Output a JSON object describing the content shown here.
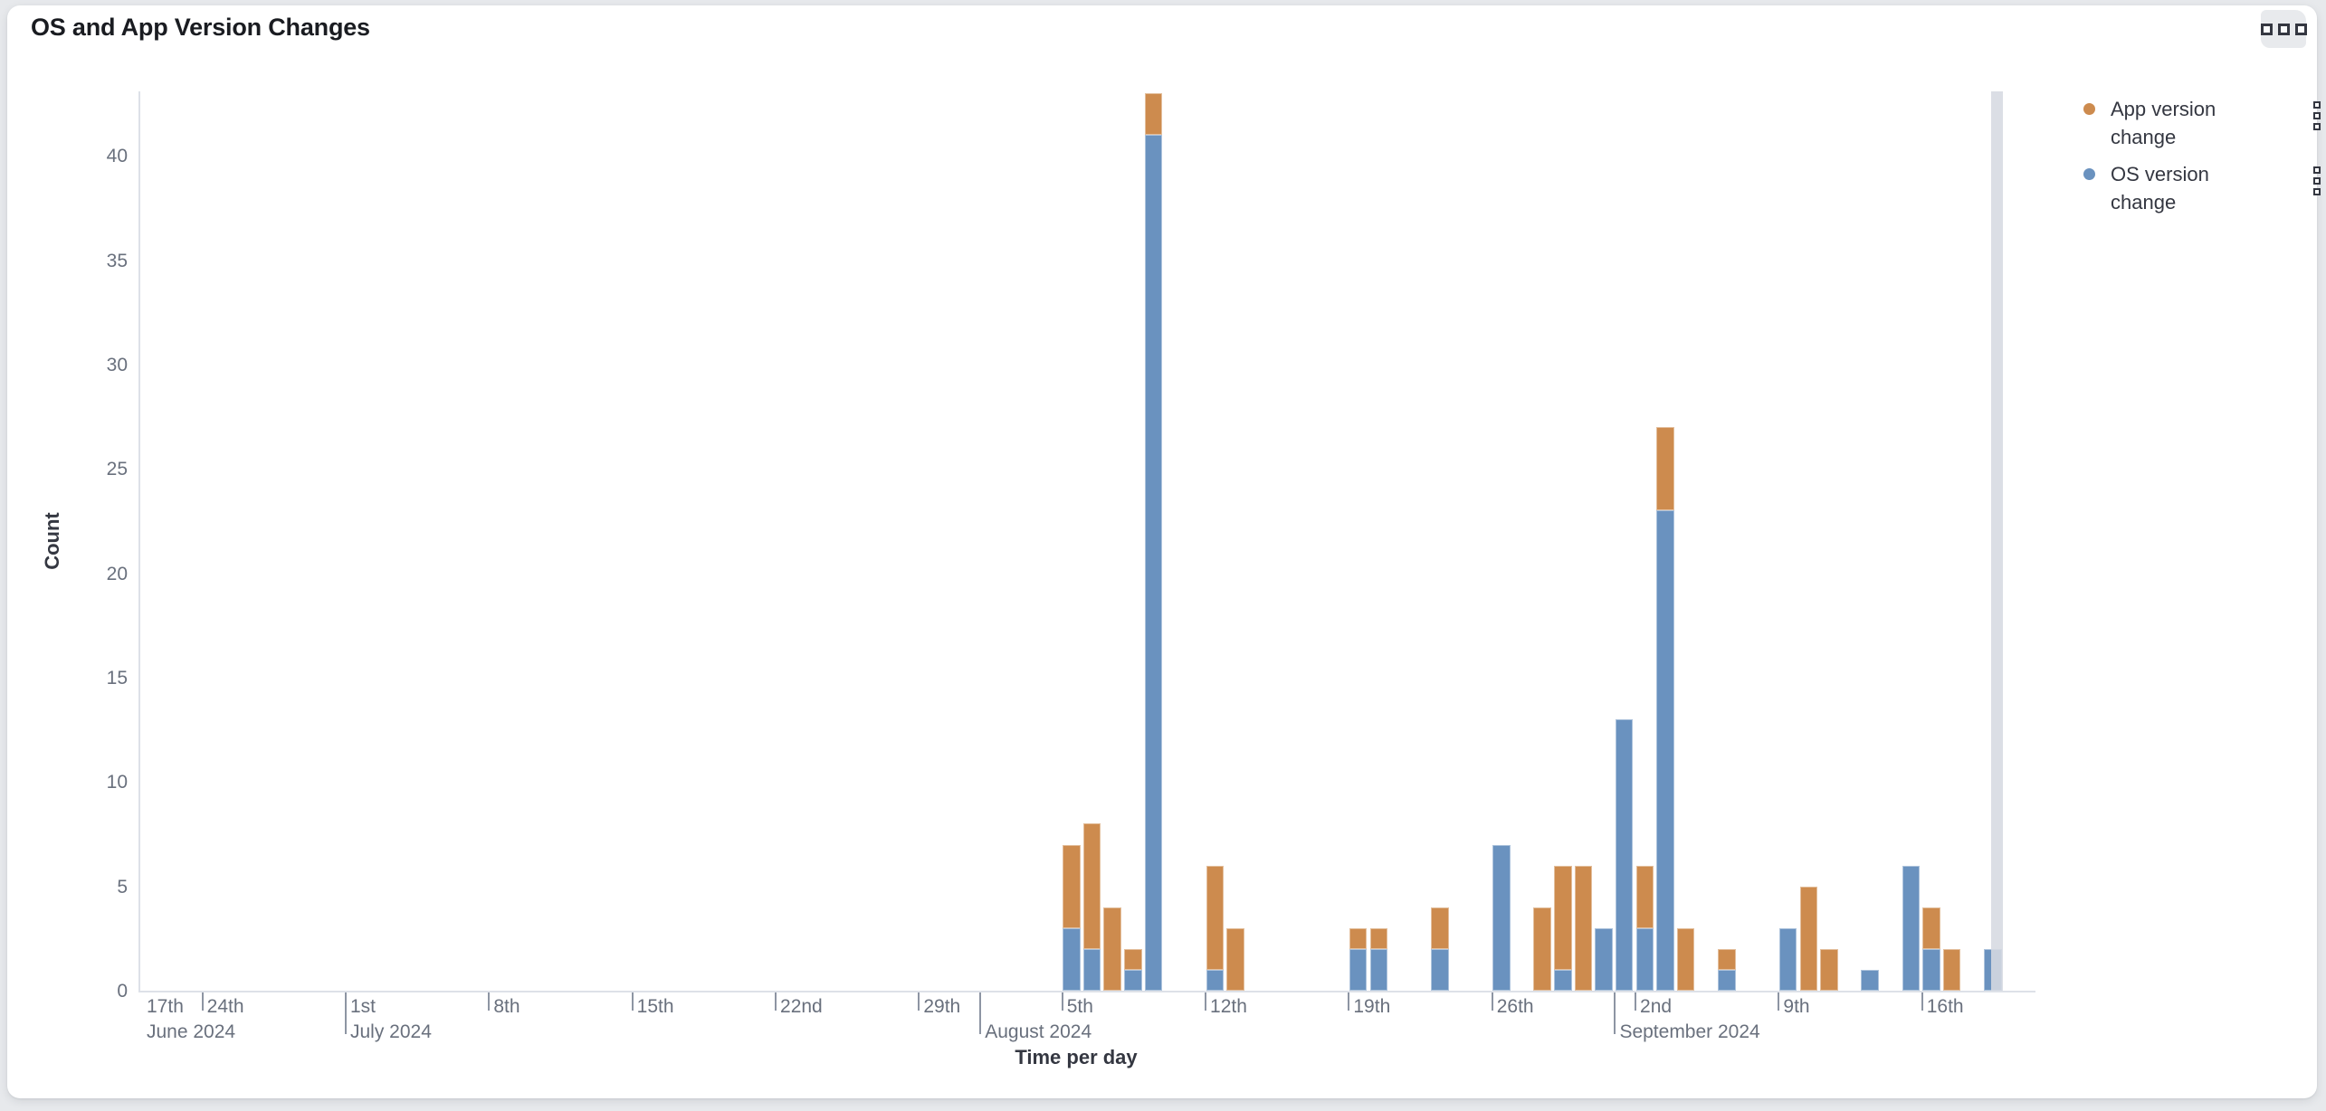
{
  "panel": {
    "title": "OS and App Version Changes",
    "options_icon": "boxes-horizontal"
  },
  "legend": {
    "position": "right",
    "items": [
      {
        "label": "App version change",
        "color": "#cd8b4e",
        "action_icon": "boxes-vertical"
      },
      {
        "label": "OS version change",
        "color": "#6a92bf",
        "action_icon": "boxes-vertical"
      }
    ]
  },
  "chart_data": {
    "type": "bar",
    "stacked": true,
    "title": "OS and App Version Changes",
    "xlabel": "Time per day",
    "ylabel": "Count",
    "ylim": [
      0,
      43
    ],
    "grid": false,
    "legend_position": "right",
    "y_axis": {
      "ticks": [
        0,
        5,
        10,
        15,
        20,
        25,
        30,
        35,
        40
      ]
    },
    "x_axis": {
      "unit": "day",
      "ticks": [
        {
          "date": "2024-06-17",
          "day": "17th",
          "month": "June 2024",
          "type": "week"
        },
        {
          "date": "2024-06-24",
          "day": "24th",
          "type": "week"
        },
        {
          "date": "2024-07-01",
          "day": "1st",
          "month": "July 2024",
          "type": "month"
        },
        {
          "date": "2024-07-08",
          "day": "8th",
          "type": "week"
        },
        {
          "date": "2024-07-15",
          "day": "15th",
          "type": "week"
        },
        {
          "date": "2024-07-22",
          "day": "22nd",
          "type": "week"
        },
        {
          "date": "2024-07-29",
          "day": "29th",
          "type": "week"
        },
        {
          "date": "2024-08-01",
          "month": "August 2024",
          "type": "month"
        },
        {
          "date": "2024-08-05",
          "day": "5th",
          "type": "week"
        },
        {
          "date": "2024-08-12",
          "day": "12th",
          "type": "week"
        },
        {
          "date": "2024-08-19",
          "day": "19th",
          "type": "week"
        },
        {
          "date": "2024-08-26",
          "day": "26th",
          "type": "week"
        },
        {
          "date": "2024-09-01",
          "month": "September 2024",
          "type": "month"
        },
        {
          "date": "2024-09-02",
          "day": "2nd",
          "type": "week"
        },
        {
          "date": "2024-09-09",
          "day": "9th",
          "type": "week"
        },
        {
          "date": "2024-09-16",
          "day": "16th",
          "type": "week"
        }
      ]
    },
    "series": [
      {
        "name": "App version change",
        "key": "app",
        "color": "#cd8b4e"
      },
      {
        "name": "OS version change",
        "key": "os",
        "color": "#6a92bf"
      }
    ],
    "stack_order": [
      "os",
      "app"
    ],
    "bars": [
      {
        "date": "2024-08-05",
        "os": 3,
        "app": 4
      },
      {
        "date": "2024-08-06",
        "os": 2,
        "app": 6
      },
      {
        "date": "2024-08-07",
        "os": 0,
        "app": 4
      },
      {
        "date": "2024-08-08",
        "os": 1,
        "app": 1
      },
      {
        "date": "2024-08-09",
        "os": 41,
        "app": 2
      },
      {
        "date": "2024-08-12",
        "os": 1,
        "app": 5
      },
      {
        "date": "2024-08-13",
        "os": 0,
        "app": 3
      },
      {
        "date": "2024-08-19",
        "os": 2,
        "app": 1
      },
      {
        "date": "2024-08-20",
        "os": 2,
        "app": 1
      },
      {
        "date": "2024-08-23",
        "os": 2,
        "app": 2
      },
      {
        "date": "2024-08-26",
        "os": 7,
        "app": 0
      },
      {
        "date": "2024-08-28",
        "os": 0,
        "app": 4
      },
      {
        "date": "2024-08-29",
        "os": 1,
        "app": 5
      },
      {
        "date": "2024-08-30",
        "os": 0,
        "app": 6
      },
      {
        "date": "2024-08-31",
        "os": 3,
        "app": 0
      },
      {
        "date": "2024-09-01",
        "os": 13,
        "app": 0
      },
      {
        "date": "2024-09-02",
        "os": 3,
        "app": 3
      },
      {
        "date": "2024-09-03",
        "os": 23,
        "app": 4
      },
      {
        "date": "2024-09-04",
        "os": 0,
        "app": 3
      },
      {
        "date": "2024-09-06",
        "os": 1,
        "app": 1
      },
      {
        "date": "2024-09-09",
        "os": 3,
        "app": 0
      },
      {
        "date": "2024-09-10",
        "os": 0,
        "app": 5
      },
      {
        "date": "2024-09-11",
        "os": 0,
        "app": 2
      },
      {
        "date": "2024-09-13",
        "os": 1,
        "app": 0
      },
      {
        "date": "2024-09-15",
        "os": 6,
        "app": 0
      },
      {
        "date": "2024-09-16",
        "os": 2,
        "app": 2
      },
      {
        "date": "2024-09-17",
        "os": 0,
        "app": 2
      },
      {
        "date": "2024-09-19",
        "os": 2,
        "app": 0
      }
    ],
    "partial_bucket_date": "2024-09-19"
  }
}
